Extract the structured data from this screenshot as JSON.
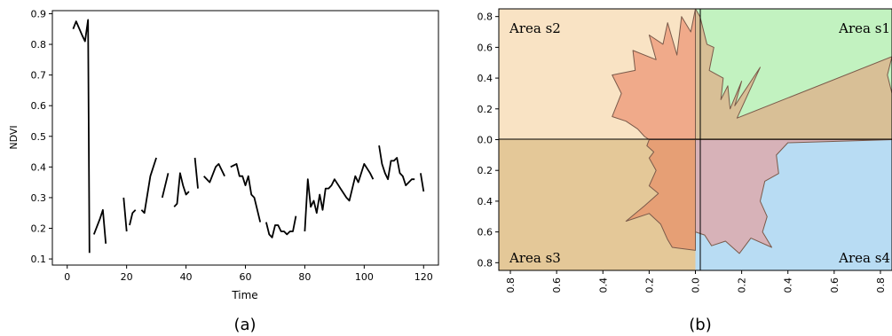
{
  "chart_data": [
    {
      "type": "line",
      "panel_label": "(a)",
      "xlabel": "Time",
      "ylabel": "NDVI",
      "xlim": [
        -5,
        125
      ],
      "ylim": [
        0.08,
        0.91
      ],
      "xticks": [
        "0",
        "20",
        "40",
        "60",
        "80",
        "100",
        "120"
      ],
      "yticks": [
        "0.1",
        "0.2",
        "0.3",
        "0.4",
        "0.5",
        "0.6",
        "0.7",
        "0.8",
        "0.9"
      ],
      "grid": false,
      "segments": [
        [
          [
            2,
            0.85
          ],
          [
            3,
            0.875
          ],
          [
            5,
            0.83
          ],
          [
            6,
            0.81
          ],
          [
            7,
            0.88
          ],
          [
            7.5,
            0.12
          ]
        ],
        [
          [
            9,
            0.18
          ],
          [
            11,
            0.23
          ],
          [
            12,
            0.26
          ],
          [
            13,
            0.15
          ]
        ],
        [
          [
            19,
            0.3
          ],
          [
            20,
            0.19
          ]
        ],
        [
          [
            21,
            0.21
          ],
          [
            22,
            0.25
          ],
          [
            23,
            0.26
          ]
        ],
        [
          [
            25,
            0.26
          ],
          [
            26,
            0.25
          ],
          [
            28,
            0.37
          ],
          [
            30,
            0.43
          ]
        ],
        [
          [
            32,
            0.3
          ],
          [
            34,
            0.38
          ]
        ],
        [
          [
            36,
            0.27
          ],
          [
            37,
            0.28
          ],
          [
            38,
            0.38
          ],
          [
            39,
            0.34
          ],
          [
            40,
            0.31
          ],
          [
            41,
            0.32
          ]
        ],
        [
          [
            43,
            0.43
          ],
          [
            44,
            0.33
          ]
        ],
        [
          [
            46,
            0.37
          ],
          [
            48,
            0.35
          ],
          [
            50,
            0.4
          ],
          [
            51,
            0.41
          ],
          [
            53,
            0.37
          ]
        ],
        [
          [
            55,
            0.4
          ],
          [
            57,
            0.41
          ],
          [
            58,
            0.37
          ],
          [
            59,
            0.37
          ],
          [
            60,
            0.34
          ],
          [
            61,
            0.37
          ],
          [
            62,
            0.31
          ],
          [
            63,
            0.3
          ],
          [
            64,
            0.26
          ],
          [
            65,
            0.22
          ]
        ],
        [
          [
            67,
            0.22
          ],
          [
            68,
            0.18
          ],
          [
            69,
            0.17
          ],
          [
            70,
            0.21
          ],
          [
            71,
            0.21
          ],
          [
            72,
            0.19
          ],
          [
            73,
            0.19
          ],
          [
            74,
            0.18
          ],
          [
            75,
            0.19
          ],
          [
            76,
            0.19
          ],
          [
            77,
            0.24
          ]
        ],
        [
          [
            80,
            0.19
          ],
          [
            81,
            0.36
          ],
          [
            82,
            0.27
          ],
          [
            83,
            0.29
          ],
          [
            84,
            0.25
          ],
          [
            85,
            0.31
          ],
          [
            86,
            0.26
          ],
          [
            87,
            0.33
          ],
          [
            88,
            0.33
          ],
          [
            89,
            0.34
          ],
          [
            90,
            0.36
          ],
          [
            92,
            0.33
          ],
          [
            94,
            0.3
          ],
          [
            95,
            0.29
          ],
          [
            97,
            0.37
          ],
          [
            98,
            0.35
          ],
          [
            100,
            0.41
          ],
          [
            102,
            0.38
          ],
          [
            103,
            0.36
          ]
        ],
        [
          [
            105,
            0.47
          ],
          [
            106,
            0.41
          ],
          [
            107,
            0.38
          ],
          [
            108,
            0.36
          ],
          [
            109,
            0.42
          ],
          [
            110,
            0.42
          ],
          [
            111,
            0.43
          ],
          [
            112,
            0.38
          ],
          [
            113,
            0.37
          ],
          [
            114,
            0.34
          ],
          [
            116,
            0.36
          ],
          [
            117,
            0.36
          ]
        ],
        [
          [
            119,
            0.38
          ],
          [
            120,
            0.32
          ]
        ]
      ]
    },
    {
      "type": "area",
      "panel_label": "(b)",
      "xlim": [
        -0.85,
        0.85
      ],
      "ylim": [
        -0.85,
        0.85
      ],
      "xticks": [
        "0.8",
        "0.6",
        "0.4",
        "0.2",
        "0.0",
        "0.2",
        "0.4",
        "0.6",
        "0.8"
      ],
      "yticks": [
        "0.8",
        "0.6",
        "0.4",
        "0.2",
        "0.0",
        "0.2",
        "0.4",
        "0.6",
        "0.8"
      ],
      "grid": false,
      "quadrants": [
        {
          "name": "Area s1",
          "color": "#c2f2c0",
          "placement": "top-right"
        },
        {
          "name": "Area s2",
          "color": "#f9e3c4",
          "placement": "top-left"
        },
        {
          "name": "Area s3",
          "color": "#e4c898",
          "placement": "bottom-left"
        },
        {
          "name": "Area s4",
          "color": "#b8dcf3",
          "placement": "bottom-right"
        }
      ],
      "overlay_colors": {
        "s1": "#d8bf96",
        "s2": "#f0aa8a",
        "s3": "#e69f75",
        "s4": "#d7b2b8",
        "outline": "#7a5a4a"
      },
      "shapes": [
        {
          "quadrant": "s2",
          "points": [
            [
              0.0,
              0.85
            ],
            [
              -0.02,
              0.7
            ],
            [
              -0.06,
              0.8
            ],
            [
              -0.08,
              0.55
            ],
            [
              -0.12,
              0.76
            ],
            [
              -0.14,
              0.62
            ],
            [
              -0.2,
              0.68
            ],
            [
              -0.17,
              0.52
            ],
            [
              -0.27,
              0.58
            ],
            [
              -0.26,
              0.45
            ],
            [
              -0.36,
              0.42
            ],
            [
              -0.32,
              0.3
            ],
            [
              -0.36,
              0.15
            ],
            [
              -0.3,
              0.12
            ],
            [
              -0.25,
              0.07
            ],
            [
              -0.22,
              0.02
            ],
            [
              -0.2,
              0.0
            ],
            [
              0.0,
              0.0
            ]
          ]
        },
        {
          "quadrant": "s1",
          "points": [
            [
              0.0,
              0.85
            ],
            [
              0.02,
              0.8
            ],
            [
              0.05,
              0.62
            ],
            [
              0.08,
              0.6
            ],
            [
              0.06,
              0.45
            ],
            [
              0.12,
              0.4
            ],
            [
              0.11,
              0.26
            ],
            [
              0.14,
              0.35
            ],
            [
              0.15,
              0.2
            ],
            [
              0.2,
              0.38
            ],
            [
              0.17,
              0.22
            ],
            [
              0.28,
              0.47
            ],
            [
              0.18,
              0.14
            ],
            [
              0.85,
              0.54
            ],
            [
              0.83,
              0.42
            ],
            [
              0.85,
              0.3
            ],
            [
              0.85,
              0.0
            ],
            [
              0.0,
              0.0
            ]
          ]
        },
        {
          "quadrant": "s3",
          "points": [
            [
              0.0,
              0.0
            ],
            [
              -0.2,
              0.0
            ],
            [
              -0.21,
              -0.04
            ],
            [
              -0.18,
              -0.08
            ],
            [
              -0.2,
              -0.12
            ],
            [
              -0.17,
              -0.2
            ],
            [
              -0.2,
              -0.3
            ],
            [
              -0.16,
              -0.35
            ],
            [
              -0.22,
              -0.43
            ],
            [
              -0.3,
              -0.53
            ],
            [
              -0.2,
              -0.48
            ],
            [
              -0.15,
              -0.55
            ],
            [
              -0.12,
              -0.65
            ],
            [
              -0.1,
              -0.7
            ],
            [
              0.0,
              -0.72
            ],
            [
              0.0,
              0.0
            ]
          ]
        },
        {
          "quadrant": "s4",
          "points": [
            [
              0.0,
              0.0
            ],
            [
              0.85,
              0.0
            ],
            [
              0.4,
              -0.02
            ],
            [
              0.35,
              -0.1
            ],
            [
              0.36,
              -0.22
            ],
            [
              0.3,
              -0.27
            ],
            [
              0.28,
              -0.4
            ],
            [
              0.31,
              -0.5
            ],
            [
              0.29,
              -0.6
            ],
            [
              0.33,
              -0.7
            ],
            [
              0.24,
              -0.64
            ],
            [
              0.19,
              -0.74
            ],
            [
              0.13,
              -0.66
            ],
            [
              0.07,
              -0.69
            ],
            [
              0.04,
              -0.62
            ],
            [
              0.0,
              -0.6
            ]
          ]
        }
      ]
    }
  ]
}
